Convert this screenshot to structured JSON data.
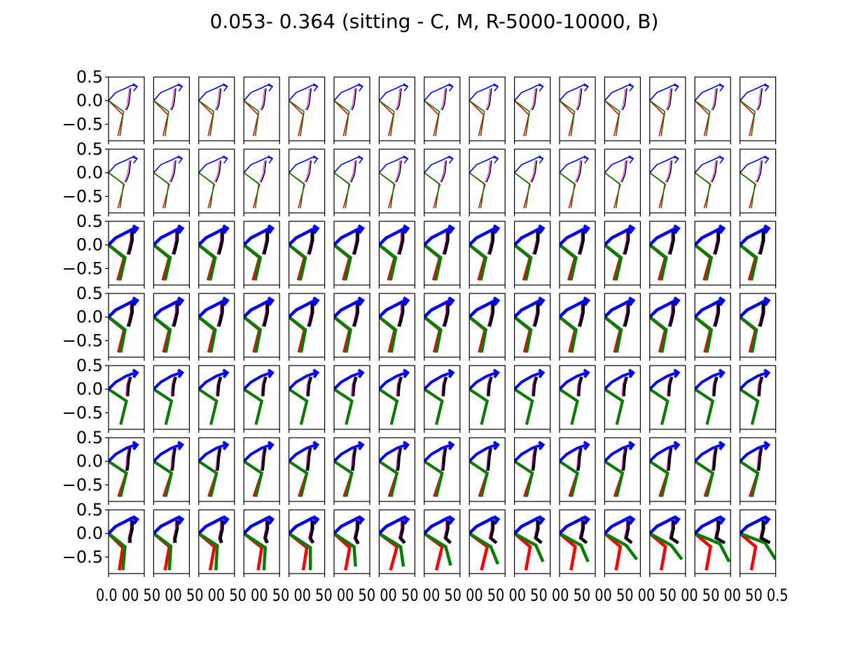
{
  "title": "0.053- 0.364 (sitting - C, M, R-5000-10000, B)",
  "chart_data": {
    "type": "line",
    "description_grid": {
      "rows": 7,
      "cols": 15
    },
    "xlim": [
      0,
      0.5
    ],
    "ylim": [
      -0.85,
      0.5
    ],
    "x_ticks": [
      {
        "value": 0.0,
        "label": "0.0"
      },
      {
        "value": 0.5,
        "label": "0.5"
      }
    ],
    "y_ticks": [
      {
        "value": 0.5,
        "label": "0.5"
      },
      {
        "value": 0.0,
        "label": "0.0"
      },
      {
        "value": -0.5,
        "label": "−0.5"
      }
    ],
    "x_tick_label_overlap_text": "0.0 00 50 00 50 00 50 00 50 00 50 00 50 00 50 00 50 00 50 00 50 00 50 00 50 00 50 00 50 00 50 0.5",
    "colors": {
      "upper_chain": "#0000ff",
      "torso": "#000000",
      "torso_shadow": "#ff00ff",
      "leg_red": "#ff0000",
      "leg_green": "#008000"
    },
    "row_line_widths": [
      1.6,
      1.6,
      4.5,
      4.5,
      4.0,
      4.0,
      4.5
    ],
    "rows": [
      {
        "upper": [
          [
            0,
            0
          ],
          [
            0.1,
            0.17
          ],
          [
            0.25,
            0.27
          ],
          [
            0.33,
            0.33
          ],
          [
            0.4,
            0.3
          ]
        ],
        "torso": [
          [
            0.31,
            0.26
          ],
          [
            0.29,
            0.0
          ],
          [
            0.28,
            -0.1
          ],
          [
            0.25,
            -0.2
          ]
        ],
        "leg_red": [
          [
            0,
            0
          ],
          [
            0.2,
            -0.3
          ],
          [
            0.13,
            -0.75
          ]
        ],
        "leg_green": [
          [
            0,
            0
          ],
          [
            0.21,
            -0.23
          ],
          [
            0.16,
            -0.75
          ]
        ]
      },
      {
        "upper": [
          [
            0,
            0
          ],
          [
            0.1,
            0.17
          ],
          [
            0.25,
            0.27
          ],
          [
            0.33,
            0.33
          ],
          [
            0.4,
            0.3
          ]
        ],
        "torso": [
          [
            0.31,
            0.26
          ],
          [
            0.29,
            0.0
          ],
          [
            0.27,
            -0.1
          ],
          [
            0.24,
            -0.2
          ]
        ],
        "leg_red": [
          [
            0,
            0
          ],
          [
            0.22,
            -0.25
          ],
          [
            0.13,
            -0.75
          ]
        ],
        "leg_green": [
          [
            0,
            0
          ],
          [
            0.21,
            -0.23
          ],
          [
            0.16,
            -0.75
          ]
        ]
      },
      {
        "upper": [
          [
            0,
            0
          ],
          [
            0.1,
            0.15
          ],
          [
            0.23,
            0.25
          ],
          [
            0.33,
            0.33
          ],
          [
            0.4,
            0.35
          ]
        ],
        "torso": [
          [
            0.33,
            0.3
          ],
          [
            0.33,
            0.1
          ],
          [
            0.3,
            -0.1
          ],
          [
            0.28,
            -0.2
          ]
        ],
        "leg_red": [
          [
            0,
            0
          ],
          [
            0.22,
            -0.27
          ],
          [
            0.13,
            -0.75
          ]
        ],
        "leg_green": [
          [
            0,
            0
          ],
          [
            0.23,
            -0.27
          ],
          [
            0.16,
            -0.75
          ]
        ]
      },
      {
        "upper": [
          [
            0,
            0
          ],
          [
            0.1,
            0.15
          ],
          [
            0.23,
            0.25
          ],
          [
            0.33,
            0.33
          ],
          [
            0.4,
            0.35
          ]
        ],
        "torso": [
          [
            0.33,
            0.3
          ],
          [
            0.33,
            0.1
          ],
          [
            0.3,
            -0.1
          ],
          [
            0.28,
            -0.2
          ]
        ],
        "leg_red": [
          [
            0,
            0
          ],
          [
            0.22,
            -0.27
          ],
          [
            0.14,
            -0.75
          ]
        ],
        "leg_green": [
          [
            0,
            0
          ],
          [
            0.23,
            -0.27
          ],
          [
            0.17,
            -0.75
          ]
        ]
      },
      {
        "upper": [
          [
            0,
            0
          ],
          [
            0.1,
            0.15
          ],
          [
            0.25,
            0.28
          ],
          [
            0.34,
            0.33
          ],
          [
            0.4,
            0.35
          ]
        ],
        "torso": [
          [
            0.31,
            0.26
          ],
          [
            0.28,
            0.1
          ],
          [
            0.27,
            -0.1
          ],
          [
            0.27,
            -0.15
          ]
        ],
        "leg_red": [
          [
            0,
            0
          ],
          [
            0.25,
            -0.25
          ],
          [
            0.17,
            -0.75
          ]
        ],
        "leg_green": [
          [
            0,
            0
          ],
          [
            0.25,
            -0.25
          ],
          [
            0.17,
            -0.75
          ]
        ]
      },
      {
        "upper": [
          [
            0,
            0
          ],
          [
            0.1,
            0.15
          ],
          [
            0.25,
            0.28
          ],
          [
            0.34,
            0.33
          ],
          [
            0.4,
            0.35
          ]
        ],
        "torso": [
          [
            0.3,
            0.28
          ],
          [
            0.28,
            0.1
          ],
          [
            0.27,
            -0.1
          ],
          [
            0.26,
            -0.2
          ]
        ],
        "leg_red": [
          [
            0,
            0
          ],
          [
            0.25,
            -0.25
          ],
          [
            0.14,
            -0.75
          ]
        ],
        "leg_green": [
          [
            0,
            0
          ],
          [
            0.25,
            -0.25
          ],
          [
            0.17,
            -0.75
          ]
        ]
      },
      {
        "upper": [
          [
            0,
            0
          ],
          [
            0.1,
            0.15
          ],
          [
            0.23,
            0.25
          ],
          [
            0.33,
            0.33
          ],
          [
            0.4,
            0.3
          ]
        ],
        "torso": [
          [
            0.33,
            0.28
          ],
          [
            0.33,
            0.1
          ],
          [
            0.3,
            -0.1
          ],
          [
            0.3,
            -0.2
          ]
        ],
        "leg_red": [
          [
            0,
            0
          ],
          [
            0.2,
            -0.3
          ],
          [
            0.15,
            -0.78
          ]
        ],
        "leg_green": [
          [
            0,
            0
          ],
          [
            0.23,
            -0.28
          ],
          [
            0.2,
            -0.78
          ]
        ]
      }
    ],
    "last_row_variations": [
      {
        "torso_end": [
          0.3,
          -0.2
        ],
        "red": [
          [
            0,
            0
          ],
          [
            0.2,
            -0.3
          ],
          [
            0.15,
            -0.78
          ]
        ],
        "green": [
          [
            0,
            0
          ],
          [
            0.23,
            -0.28
          ],
          [
            0.2,
            -0.78
          ]
        ]
      },
      {
        "torso_end": [
          0.3,
          -0.2
        ],
        "red": [
          [
            0,
            0
          ],
          [
            0.22,
            -0.28
          ],
          [
            0.16,
            -0.78
          ]
        ],
        "green": [
          [
            0,
            0
          ],
          [
            0.24,
            -0.27
          ],
          [
            0.22,
            -0.78
          ]
        ]
      },
      {
        "torso_end": [
          0.32,
          -0.2
        ],
        "red": [
          [
            0,
            0
          ],
          [
            0.22,
            -0.28
          ],
          [
            0.16,
            -0.78
          ]
        ],
        "green": [
          [
            0,
            0
          ],
          [
            0.26,
            -0.26
          ],
          [
            0.24,
            -0.78
          ]
        ]
      },
      {
        "torso_end": [
          0.33,
          -0.2
        ],
        "red": [
          [
            0,
            0
          ],
          [
            0.25,
            -0.3
          ],
          [
            0.2,
            -0.78
          ]
        ],
        "green": [
          [
            0,
            0
          ],
          [
            0.3,
            -0.3
          ],
          [
            0.28,
            -0.78
          ]
        ]
      },
      {
        "torso_end": [
          0.34,
          -0.2
        ],
        "red": [
          [
            0,
            0
          ],
          [
            0.25,
            -0.3
          ],
          [
            0.2,
            -0.78
          ]
        ],
        "green": [
          [
            0,
            0
          ],
          [
            0.3,
            -0.3
          ],
          [
            0.3,
            -0.78
          ]
        ]
      },
      {
        "torso_end": [
          0.34,
          -0.22
        ],
        "red": [
          [
            0,
            0
          ],
          [
            0.22,
            -0.3
          ],
          [
            0.16,
            -0.78
          ]
        ],
        "green": [
          [
            0,
            0
          ],
          [
            0.28,
            -0.28
          ],
          [
            0.3,
            -0.7
          ]
        ]
      },
      {
        "torso_end": [
          0.36,
          -0.2
        ],
        "red": [
          [
            0,
            0
          ],
          [
            0.25,
            -0.28
          ],
          [
            0.16,
            -0.78
          ]
        ],
        "green": [
          [
            0,
            0
          ],
          [
            0.3,
            -0.28
          ],
          [
            0.34,
            -0.7
          ]
        ]
      },
      {
        "torso_end": [
          0.37,
          -0.2
        ],
        "red": [
          [
            0,
            0
          ],
          [
            0.25,
            -0.28
          ],
          [
            0.17,
            -0.78
          ]
        ],
        "green": [
          [
            0,
            0
          ],
          [
            0.3,
            -0.28
          ],
          [
            0.37,
            -0.68
          ]
        ]
      },
      {
        "torso_end": [
          0.38,
          -0.2
        ],
        "red": [
          [
            0,
            0
          ],
          [
            0.25,
            -0.28
          ],
          [
            0.17,
            -0.78
          ]
        ],
        "green": [
          [
            0,
            0
          ],
          [
            0.3,
            -0.28
          ],
          [
            0.4,
            -0.65
          ]
        ]
      },
      {
        "torso_end": [
          0.38,
          -0.2
        ],
        "red": [
          [
            0,
            0
          ],
          [
            0.22,
            -0.28
          ],
          [
            0.16,
            -0.78
          ]
        ],
        "green": [
          [
            0,
            0
          ],
          [
            0.3,
            -0.25
          ],
          [
            0.4,
            -0.6
          ]
        ]
      },
      {
        "torso_end": [
          0.38,
          -0.2
        ],
        "red": [
          [
            0,
            0
          ],
          [
            0.22,
            -0.28
          ],
          [
            0.16,
            -0.78
          ]
        ],
        "green": [
          [
            0,
            0
          ],
          [
            0.3,
            -0.25
          ],
          [
            0.4,
            -0.6
          ]
        ]
      },
      {
        "torso_end": [
          0.38,
          -0.2
        ],
        "red": [
          [
            0,
            0
          ],
          [
            0.22,
            -0.28
          ],
          [
            0.16,
            -0.78
          ]
        ],
        "green": [
          [
            0,
            0
          ],
          [
            0.3,
            -0.25
          ],
          [
            0.45,
            -0.55
          ]
        ]
      },
      {
        "torso_end": [
          0.4,
          -0.2
        ],
        "red": [
          [
            0,
            0
          ],
          [
            0.22,
            -0.28
          ],
          [
            0.16,
            -0.78
          ]
        ],
        "green": [
          [
            0,
            0
          ],
          [
            0.3,
            -0.25
          ],
          [
            0.45,
            -0.55
          ]
        ]
      },
      {
        "torso_end": [
          0.42,
          -0.2
        ],
        "red": [
          [
            0,
            0
          ],
          [
            0.22,
            -0.28
          ],
          [
            0.16,
            -0.78
          ]
        ],
        "green": [
          [
            0,
            0
          ],
          [
            0.35,
            -0.22
          ],
          [
            0.48,
            -0.6
          ]
        ]
      },
      {
        "torso_end": [
          0.42,
          -0.2
        ],
        "red": [
          [
            0,
            0
          ],
          [
            0.22,
            -0.28
          ],
          [
            0.16,
            -0.78
          ]
        ],
        "green": [
          [
            0,
            0
          ],
          [
            0.35,
            -0.2
          ],
          [
            0.5,
            -0.55
          ]
        ]
      }
    ]
  }
}
